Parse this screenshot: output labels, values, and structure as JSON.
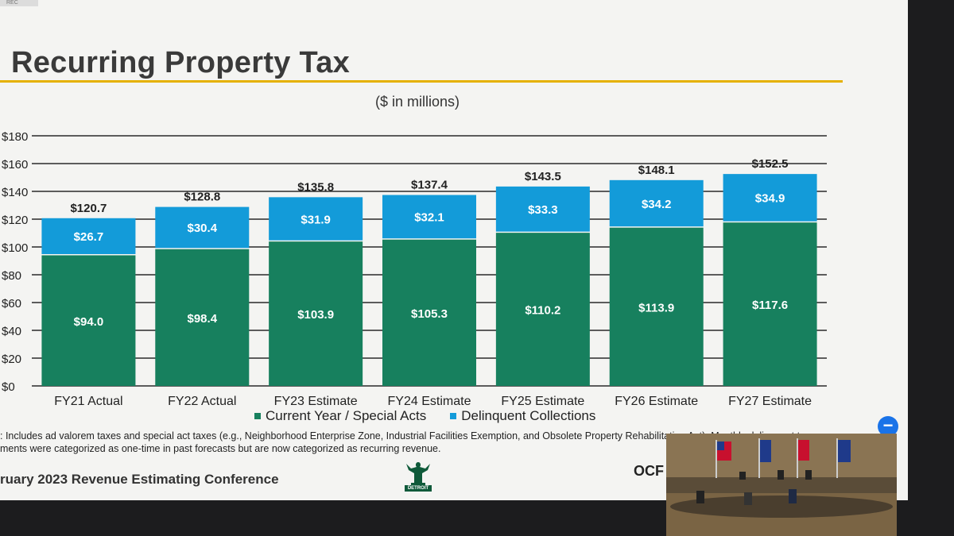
{
  "rec_label": "REC",
  "slide": {
    "title": "Recurring Property Tax",
    "subtitle": "($ in millions)",
    "footnote_line1": ": Includes ad valorem taxes and special act taxes (e.g., Neighborhood Enterprise Zone, Industrial Facilities Exemption, and Obsolete Property Rehabilitation Act). Monthly delinquent tax",
    "footnote_line2": "ments were categorized as one-time in past forecasts but are now categorized as recurring revenue.",
    "conference": "ruary 2023 Revenue Estimating Conference",
    "logo_text": "DETROIT",
    "ocfo": "OCF"
  },
  "colors": {
    "current": "#17805e",
    "delinquent": "#139bd9",
    "accent": "#e5b100"
  },
  "chart_data": {
    "type": "bar",
    "stacked": true,
    "title": "Recurring Property Tax",
    "subtitle": "($ in millions)",
    "categories": [
      "FY21 Actual",
      "FY22 Actual",
      "FY23 Estimate",
      "FY24 Estimate",
      "FY25 Estimate",
      "FY26 Estimate",
      "FY27 Estimate"
    ],
    "series": [
      {
        "name": "Current Year / Special Acts",
        "values": [
          94.0,
          98.4,
          103.9,
          105.3,
          110.2,
          113.9,
          117.6
        ],
        "labels": [
          "$94.0",
          "$98.4",
          "$103.9",
          "$105.3",
          "$110.2",
          "$113.9",
          "$117.6"
        ]
      },
      {
        "name": "Delinquent Collections",
        "values": [
          26.7,
          30.4,
          31.9,
          32.1,
          33.3,
          34.2,
          34.9
        ],
        "labels": [
          "$26.7",
          "$30.4",
          "$31.9",
          "$32.1",
          "$33.3",
          "$34.2",
          "$34.9"
        ]
      }
    ],
    "totals": [
      "$120.7",
      "$128.8",
      "$135.8",
      "$137.4",
      "$143.5",
      "$148.1",
      "$152.5"
    ],
    "yticks": [
      "$0",
      "$20",
      "$40",
      "$60",
      "$80",
      "$100",
      "$120",
      "$140",
      "$160",
      "$180"
    ],
    "ylim": [
      0,
      180
    ],
    "grid": true,
    "legend": "bottom"
  },
  "video_panel": {
    "flags": [
      "us-flag",
      "michigan-flag",
      "detroit-flag",
      "michigan-flag"
    ]
  }
}
